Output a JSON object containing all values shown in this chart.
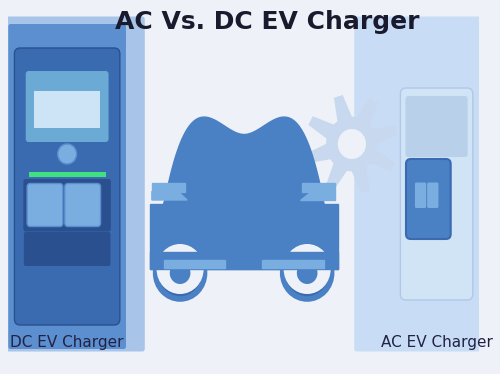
{
  "title": "AC Vs. DC EV Charger",
  "title_fontsize": 18,
  "title_color": "#1a1a2e",
  "title_fontweight": "bold",
  "bg_color": "#eef2f8",
  "left_panel_color": "#5b8fcf",
  "right_panel_color": "#c8ddf5",
  "label_left": "DC EV Charger",
  "label_right": "AC EV Charger",
  "label_fontsize": 11,
  "label_color": "#222244",
  "car_color": "#4a80c4",
  "charger_blue": "#3a6bb0",
  "charger_light": "#7aaee0",
  "gear_color": "#c8d8ee",
  "green_color": "#40e080"
}
